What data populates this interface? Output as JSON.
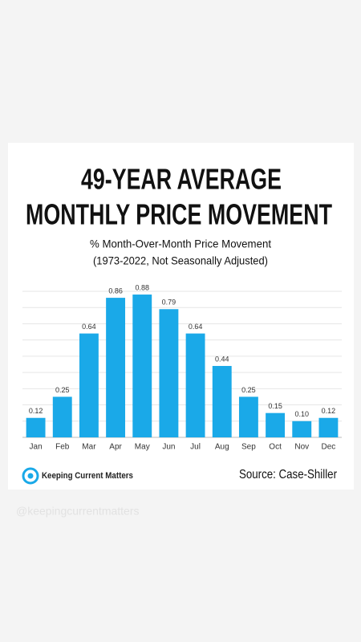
{
  "chart_data": {
    "type": "bar",
    "title": [
      "49-YEAR AVERAGE",
      "MONTHLY PRICE MOVEMENT"
    ],
    "subtitle": [
      "% Month-Over-Month Price Movement",
      "(1973-2022, Not Seasonally Adjusted)"
    ],
    "categories": [
      "Jan",
      "Feb",
      "Mar",
      "Apr",
      "May",
      "Jun",
      "Jul",
      "Aug",
      "Sep",
      "Oct",
      "Nov",
      "Dec"
    ],
    "values": [
      0.12,
      0.25,
      0.64,
      0.86,
      0.88,
      0.79,
      0.64,
      0.44,
      0.25,
      0.15,
      0.1,
      0.12
    ],
    "value_labels": [
      "0.12",
      "0.25",
      "0.64",
      "0.86",
      "0.88",
      "0.79",
      "0.64",
      "0.44",
      "0.25",
      "0.15",
      "0.10",
      "0.12"
    ],
    "color": "#1aa9e8",
    "ylim": [
      0,
      0.9
    ],
    "yticks": [
      0,
      0.1,
      0.2,
      0.3,
      0.4,
      0.5,
      0.6,
      0.7,
      0.8,
      0.9
    ],
    "grid": true
  },
  "footer": {
    "brand": "Keeping Current Matters",
    "source": "Source: Case-Shiller"
  },
  "watermark": "@keepingcurrentmatters"
}
